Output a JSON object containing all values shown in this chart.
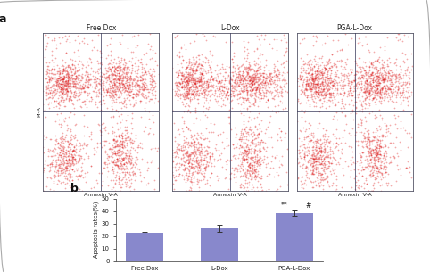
{
  "panel_label_a": "a",
  "panel_label_b": "b",
  "scatter_titles": [
    "Free Dox",
    "L-Dox",
    "PGA-L-Dox"
  ],
  "scatter_xlabel": "Annexin V-A",
  "scatter_ylabel": "PI-A",
  "bar_categories": [
    "Free Dox",
    "L-Dox",
    "PGA-L-Dox"
  ],
  "bar_values": [
    22.5,
    26.0,
    38.5
  ],
  "bar_errors": [
    1.2,
    2.8,
    2.0
  ],
  "bar_color": "#8888cc",
  "bar_ylabel": "Apoptosis rates(%)",
  "bar_ylim": [
    0,
    50
  ],
  "bar_yticks": [
    0,
    10,
    20,
    30,
    40,
    50
  ],
  "significance_labels": [
    "**",
    "#"
  ],
  "background_color": "#ffffff",
  "scatter_dot_color": "#dd1111",
  "scatter_dot_alpha": 0.35,
  "scatter_dot_size": 1.5,
  "border_color": "#aaaaaa"
}
